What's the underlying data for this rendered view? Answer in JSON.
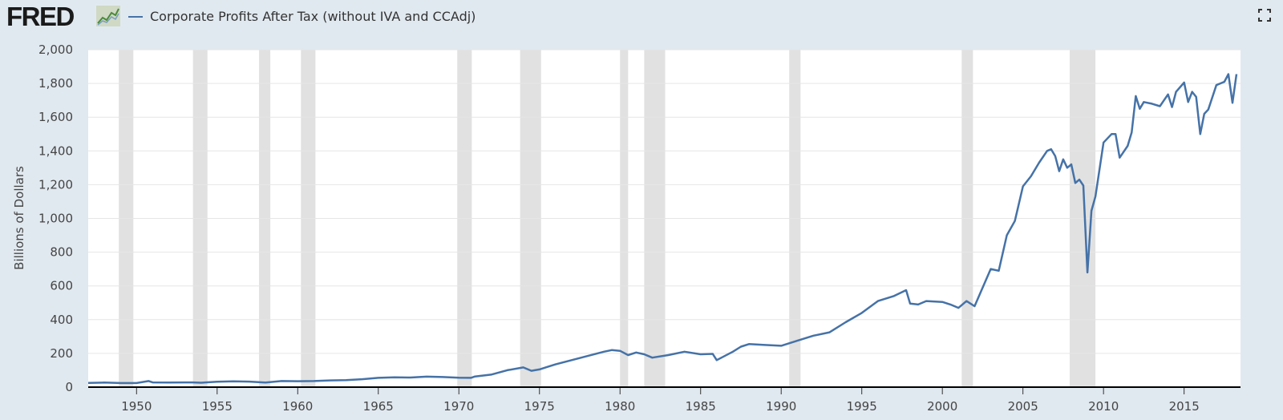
{
  "header": {
    "logo": "FRED",
    "logo_icon": "line-graph-icon",
    "series_title": "Corporate Profits After Tax (without IVA and CCAdj)",
    "fullscreen_icon": "fullscreen-icon"
  },
  "colors": {
    "background": "#e1e9f0",
    "plot_background": "#ffffff",
    "series_line": "#4572a7",
    "recession_band": "#e1e1e1",
    "gridline": "#e6e6e6"
  },
  "chart_data": {
    "type": "line",
    "title": "Corporate Profits After Tax (without IVA and CCAdj)",
    "xlabel": "",
    "ylabel": "Billions of Dollars",
    "xlim": [
      1947.0,
      2018.5
    ],
    "ylim": [
      0,
      2000
    ],
    "y_ticks": [
      0,
      200,
      400,
      600,
      800,
      1000,
      1200,
      1400,
      1600,
      1800,
      2000
    ],
    "y_tick_labels": [
      "0",
      "200",
      "400",
      "600",
      "800",
      "1,000",
      "1,200",
      "1,400",
      "1,600",
      "1,800",
      "2,000"
    ],
    "x_ticks": [
      1950,
      1955,
      1960,
      1965,
      1970,
      1975,
      1980,
      1985,
      1990,
      1995,
      2000,
      2005,
      2010,
      2015
    ],
    "grid": "horizontal",
    "legend": "top-left",
    "recessions": [
      [
        1948.9,
        1949.8
      ],
      [
        1953.5,
        1954.4
      ],
      [
        1957.6,
        1958.3
      ],
      [
        1960.2,
        1961.1
      ],
      [
        1969.9,
        1970.8
      ],
      [
        1973.8,
        1975.1
      ],
      [
        1980.0,
        1980.5
      ],
      [
        1981.5,
        1982.8
      ],
      [
        1990.5,
        1991.2
      ],
      [
        2001.2,
        2001.9
      ],
      [
        2007.9,
        2009.5
      ]
    ],
    "series": [
      {
        "name": "Corporate Profits After Tax (without IVA and CCAdj)",
        "x": [
          1947.0,
          1948.0,
          1949.0,
          1950.0,
          1950.75,
          1951.0,
          1952.0,
          1953.0,
          1953.5,
          1954.0,
          1955.0,
          1956.0,
          1957.0,
          1958.0,
          1959.0,
          1960.0,
          1961.0,
          1962.0,
          1963.0,
          1964.0,
          1965.0,
          1966.0,
          1967.0,
          1968.0,
          1969.0,
          1970.0,
          1970.75,
          1971.0,
          1972.0,
          1973.0,
          1974.0,
          1974.5,
          1975.0,
          1975.5,
          1976.0,
          1977.0,
          1978.0,
          1979.0,
          1979.5,
          1980.0,
          1980.5,
          1981.0,
          1981.5,
          1982.0,
          1983.0,
          1984.0,
          1985.0,
          1985.75,
          1986.0,
          1987.0,
          1987.5,
          1988.0,
          1989.0,
          1990.0,
          1991.0,
          1992.0,
          1993.0,
          1994.0,
          1995.0,
          1996.0,
          1997.0,
          1997.75,
          1998.0,
          1998.5,
          1999.0,
          2000.0,
          2000.5,
          2001.0,
          2001.5,
          2002.0,
          2003.0,
          2003.5,
          2004.0,
          2004.5,
          2005.0,
          2005.5,
          2006.0,
          2006.5,
          2006.75,
          2007.0,
          2007.25,
          2007.5,
          2007.75,
          2008.0,
          2008.25,
          2008.5,
          2008.75,
          2009.0,
          2009.25,
          2009.5,
          2010.0,
          2010.5,
          2010.75,
          2011.0,
          2011.5,
          2011.75,
          2012.0,
          2012.25,
          2012.5,
          2013.0,
          2013.5,
          2014.0,
          2014.25,
          2014.5,
          2015.0,
          2015.25,
          2015.5,
          2015.75,
          2016.0,
          2016.25,
          2016.5,
          2017.0,
          2017.5,
          2017.75,
          2018.0,
          2018.25
        ],
        "y": [
          25,
          27,
          24,
          24,
          36,
          28,
          27,
          28,
          28,
          26,
          32,
          34,
          33,
          27,
          36,
          35,
          36,
          40,
          42,
          47,
          55,
          58,
          57,
          62,
          60,
          56,
          55,
          63,
          74,
          100,
          117,
          97,
          105,
          120,
          135,
          160,
          185,
          210,
          220,
          215,
          190,
          205,
          195,
          175,
          190,
          210,
          195,
          197,
          160,
          210,
          240,
          255,
          250,
          245,
          275,
          305,
          325,
          385,
          440,
          510,
          540,
          575,
          495,
          490,
          510,
          505,
          490,
          470,
          510,
          480,
          700,
          690,
          900,
          985,
          1190,
          1250,
          1330,
          1400,
          1410,
          1370,
          1280,
          1350,
          1300,
          1320,
          1210,
          1230,
          1195,
          680,
          1045,
          1130,
          1450,
          1500,
          1500,
          1360,
          1430,
          1510,
          1725,
          1650,
          1690,
          1680,
          1665,
          1735,
          1660,
          1750,
          1805,
          1690,
          1750,
          1720,
          1500,
          1620,
          1645,
          1790,
          1810,
          1855,
          1685,
          1855
        ]
      }
    ]
  }
}
